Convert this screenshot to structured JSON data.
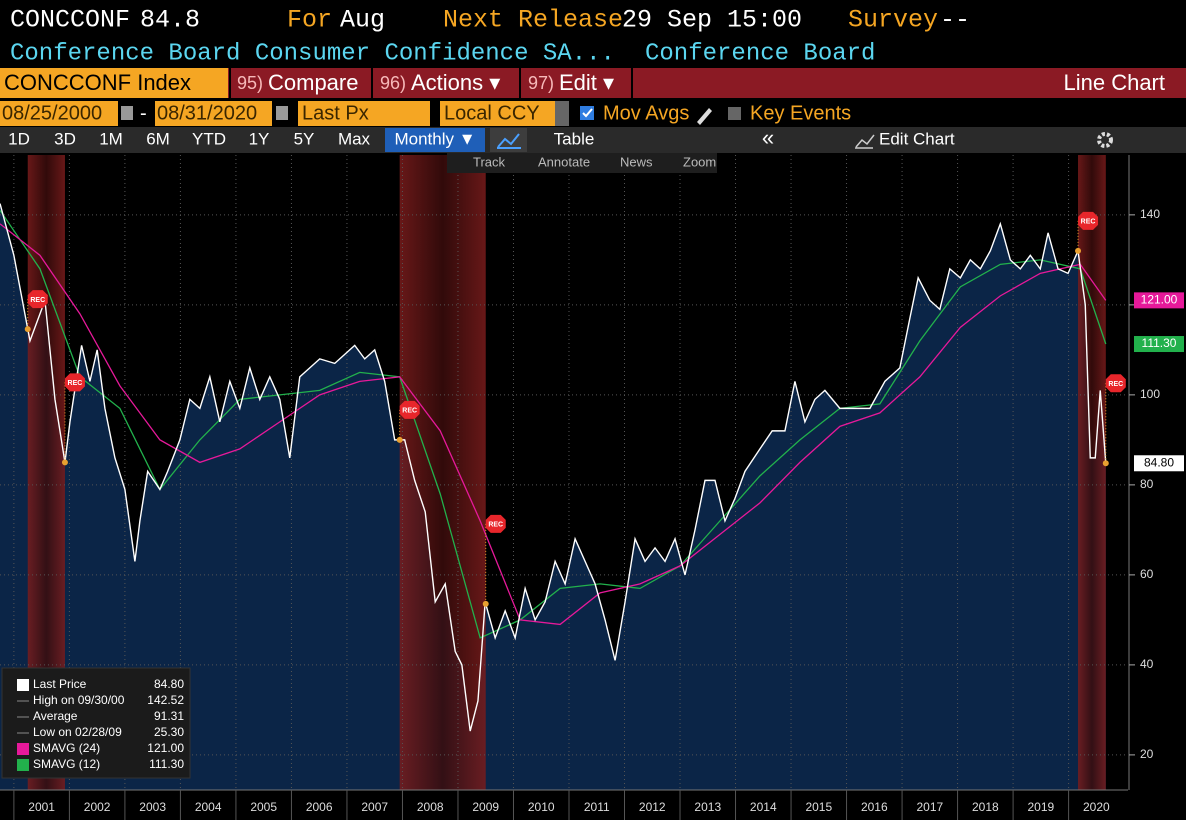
{
  "header": {
    "ticker": "CONCCONF",
    "last": "84.8",
    "for_label": "For",
    "for_value": "Aug",
    "release_label": "Next Release",
    "release_value": "29 Sep 15:00",
    "survey_label": "Survey",
    "survey_value": "--",
    "description": "Conference Board Consumer Confidence SA...",
    "source": "Conference Board"
  },
  "toolbar": {
    "security": "CONCCONF Index",
    "compare_key": "95)",
    "compare": "Compare",
    "actions_key": "96)",
    "actions": "Actions ▾",
    "edit_key": "97)",
    "edit": "Edit ▾",
    "view": "Line Chart"
  },
  "controls": {
    "start": "08/25/2000",
    "dash": "-",
    "end": "08/31/2020",
    "field": "Last Px",
    "currency": "Local CCY",
    "mov_avgs": "Mov Avgs",
    "key_events": "Key Events"
  },
  "periods": [
    "1D",
    "3D",
    "1M",
    "6M",
    "YTD",
    "1Y",
    "5Y",
    "Max"
  ],
  "frequency": "Monthly ▼",
  "table": "Table",
  "collapse": "«",
  "edit_chart": "Edit Chart",
  "tools": [
    "Track",
    "Annotate",
    "News",
    "Zoom"
  ],
  "chart_data": {
    "type": "line",
    "grid": true,
    "area_color": "#0b2547",
    "xlim": [
      2000.75,
      2021.07
    ],
    "ylim": [
      12.2,
      153.3
    ],
    "yticks": [
      20,
      40,
      60,
      80,
      100,
      120,
      140
    ],
    "xticks": [
      {
        "value": 2001.5,
        "label": "2001"
      },
      {
        "value": 2002.5,
        "label": "2002"
      },
      {
        "value": 2003.5,
        "label": "2003"
      },
      {
        "value": 2004.5,
        "label": "2004"
      },
      {
        "value": 2005.5,
        "label": "2005"
      },
      {
        "value": 2006.5,
        "label": "2006"
      },
      {
        "value": 2007.5,
        "label": "2007"
      },
      {
        "value": 2008.5,
        "label": "2008"
      },
      {
        "value": 2009.5,
        "label": "2009"
      },
      {
        "value": 2010.5,
        "label": "2010"
      },
      {
        "value": 2011.5,
        "label": "2011"
      },
      {
        "value": 2012.5,
        "label": "2012"
      },
      {
        "value": 2013.5,
        "label": "2013"
      },
      {
        "value": 2014.5,
        "label": "2014"
      },
      {
        "value": 2015.5,
        "label": "2015"
      },
      {
        "value": 2016.5,
        "label": "2016"
      },
      {
        "value": 2017.5,
        "label": "2017"
      },
      {
        "value": 2018.5,
        "label": "2018"
      },
      {
        "value": 2019.5,
        "label": "2019"
      },
      {
        "value": 2020.5,
        "label": "2020"
      }
    ],
    "recessions": [
      [
        2001.25,
        2001.92
      ],
      [
        2007.95,
        2009.5
      ],
      [
        2020.17,
        2020.67
      ]
    ],
    "rec_label": "REC",
    "series": [
      {
        "name": "Last Price",
        "color": "#ffffff",
        "last_label": "84.80",
        "label_bg": "#ffffff",
        "label_fg": "#000000",
        "x": [
          2000.75,
          2001.0,
          2001.29,
          2001.56,
          2001.74,
          2001.92,
          2002.01,
          2002.22,
          2002.37,
          2002.5,
          2002.64,
          2002.82,
          2003.0,
          2003.18,
          2003.27,
          2003.41,
          2003.63,
          2003.77,
          2003.99,
          2004.17,
          2004.35,
          2004.53,
          2004.71,
          2004.89,
          2005.07,
          2005.25,
          2005.43,
          2005.61,
          2005.79,
          2005.97,
          2006.15,
          2006.33,
          2006.51,
          2006.78,
          2006.96,
          2007.14,
          2007.32,
          2007.5,
          2007.68,
          2007.86,
          2008.04,
          2008.22,
          2008.41,
          2008.59,
          2008.77,
          2008.95,
          2009.07,
          2009.22,
          2009.36,
          2009.49,
          2009.67,
          2009.85,
          2010.03,
          2010.21,
          2010.39,
          2010.57,
          2010.75,
          2010.93,
          2011.11,
          2011.29,
          2011.47,
          2011.65,
          2011.83,
          2012.01,
          2012.19,
          2012.37,
          2012.55,
          2012.73,
          2012.91,
          2013.09,
          2013.27,
          2013.45,
          2013.63,
          2013.81,
          2013.99,
          2014.17,
          2014.44,
          2014.66,
          2014.89,
          2015.07,
          2015.25,
          2015.43,
          2015.61,
          2015.88,
          2016.15,
          2016.42,
          2016.69,
          2016.96,
          2017.14,
          2017.29,
          2017.5,
          2017.68,
          2017.86,
          2018.05,
          2018.23,
          2018.41,
          2018.59,
          2018.77,
          2018.95,
          2019.13,
          2019.31,
          2019.49,
          2019.63,
          2019.81,
          2019.99,
          2020.17,
          2020.3,
          2020.39,
          2020.48,
          2020.57,
          2020.67
        ],
        "values": [
          142.5,
          131,
          112,
          121,
          99,
          85,
          94,
          111,
          103,
          110,
          97,
          86,
          79,
          63,
          72,
          83,
          79,
          83,
          90,
          99,
          97,
          104,
          94,
          103,
          97,
          106,
          99,
          104,
          99,
          86,
          104,
          106,
          108,
          107,
          109,
          111,
          108,
          110,
          103,
          90,
          90,
          81,
          74,
          54,
          58,
          43,
          40,
          25.3,
          32,
          54,
          46,
          52,
          46,
          57,
          50,
          54,
          63,
          58,
          68,
          63,
          58,
          50,
          41,
          54,
          68,
          63,
          66,
          63,
          68,
          60,
          70,
          81,
          81,
          72,
          77,
          83,
          88,
          92,
          92,
          103,
          94,
          99,
          101,
          97,
          97,
          97,
          103,
          106,
          117,
          126,
          121,
          119,
          128,
          126,
          130,
          128,
          132,
          138,
          130,
          128,
          131,
          128,
          136,
          128,
          127,
          132,
          120,
          86,
          86,
          101,
          84.8
        ]
      },
      {
        "name": "SMAVG (24)",
        "color": "#e6199a",
        "last_label": "121.00",
        "label_bg": "#e6199a",
        "label_fg": "#ffffff",
        "x": [
          2000.75,
          2001.47,
          2002.19,
          2002.91,
          2003.63,
          2004.35,
          2005.07,
          2005.79,
          2006.51,
          2007.23,
          2007.95,
          2008.68,
          2009.4,
          2010.12,
          2010.84,
          2011.56,
          2012.28,
          2013.0,
          2013.72,
          2014.44,
          2015.16,
          2015.88,
          2016.6,
          2017.32,
          2018.05,
          2018.77,
          2019.49,
          2020.21,
          2020.67
        ],
        "values": [
          138,
          131,
          118,
          102,
          90,
          85,
          88,
          94,
          100,
          103,
          104,
          92,
          72,
          50,
          49,
          56,
          58,
          62,
          69,
          76,
          85,
          93,
          96,
          104,
          115,
          122,
          127,
          129,
          121
        ]
      },
      {
        "name": "SMAVG (12)",
        "color": "#22b14c",
        "last_label": "111.30",
        "label_bg": "#22b14c",
        "label_fg": "#ffffff",
        "x": [
          2000.75,
          2001.47,
          2002.19,
          2002.91,
          2003.63,
          2004.35,
          2005.07,
          2005.79,
          2006.51,
          2007.23,
          2007.95,
          2008.68,
          2009.4,
          2010.12,
          2010.84,
          2011.56,
          2012.28,
          2013.0,
          2013.72,
          2014.44,
          2015.16,
          2015.88,
          2016.6,
          2017.32,
          2018.05,
          2018.77,
          2019.49,
          2020.21,
          2020.67
        ],
        "values": [
          141,
          128,
          104,
          97,
          79,
          90,
          99,
          100,
          101,
          105,
          104,
          78,
          46,
          50,
          57,
          58,
          57,
          62,
          72,
          82,
          90,
          97,
          98,
          112,
          124,
          129,
          130,
          128,
          111.3
        ]
      }
    ],
    "legend": [
      {
        "label": "Last Price",
        "value": "84.80"
      },
      {
        "label": "High on 09/30/00",
        "value": "142.52"
      },
      {
        "label": "Average",
        "value": "91.31"
      },
      {
        "label": "Low on 02/28/09",
        "value": "25.30"
      },
      {
        "label": "SMAVG (24)",
        "value": "121.00"
      },
      {
        "label": "SMAVG (12)",
        "value": "111.30"
      }
    ]
  }
}
